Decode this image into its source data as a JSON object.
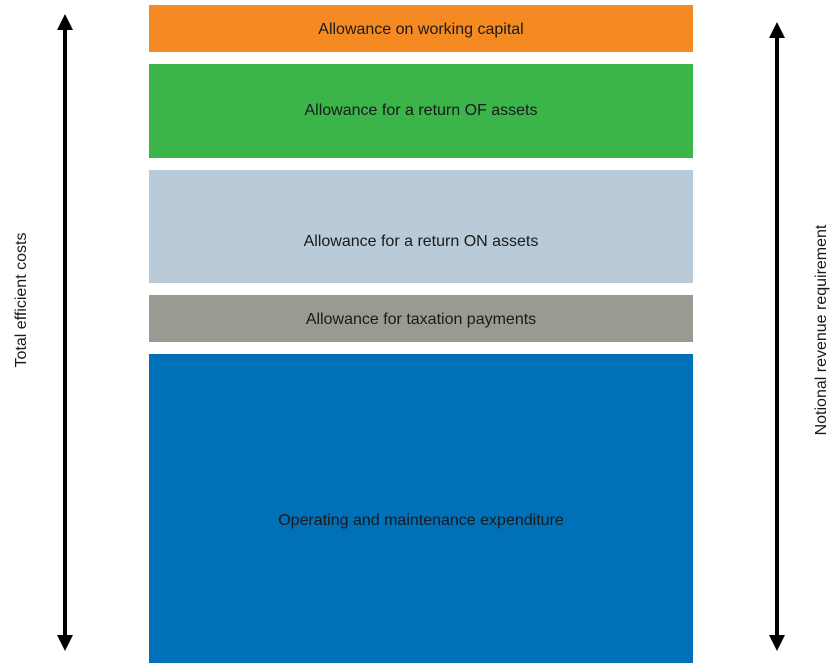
{
  "blocks": [
    {
      "label": "Allowance on working capital"
    },
    {
      "label": "Allowance for a return OF assets"
    },
    {
      "label": "Allowance for a return ON assets"
    },
    {
      "label": "Allowance for taxation payments"
    },
    {
      "label": "Operating and maintenance expenditure"
    }
  ],
  "left_arrow": {
    "label": "Total efficient costs"
  },
  "right_arrow": {
    "label": "Notional revenue requirement"
  }
}
